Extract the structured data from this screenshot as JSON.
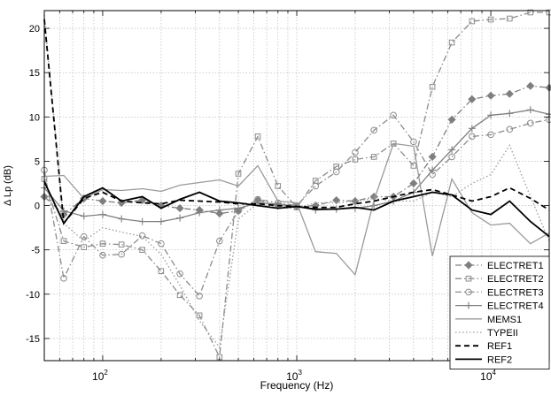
{
  "chart_data": {
    "type": "line",
    "xscale": "log",
    "xlim": [
      50,
      20000
    ],
    "ylim": [
      -17.5,
      22
    ],
    "grid": true,
    "legend_position": "bottom-right",
    "xlabel": "Frequency (Hz)",
    "ylabel": "Δ Lp (dB)",
    "xtick_labels": [
      "10^2",
      "10^3",
      "10^4"
    ],
    "ytick_labels": [
      "-15",
      "-10",
      "-5",
      "0",
      "5",
      "10",
      "15",
      "20"
    ],
    "yticks": [
      -15,
      -10,
      -5,
      0,
      5,
      10,
      15,
      20
    ],
    "series": [
      {
        "name": "ELECTRET1",
        "color": "#7f7f7f",
        "dash": "dashdot",
        "marker": "diamond",
        "points": [
          [
            50,
            1.0
          ],
          [
            63,
            -1.0
          ],
          [
            80,
            0.8
          ],
          [
            100,
            0.5
          ],
          [
            125,
            0.3
          ],
          [
            160,
            0.6
          ],
          [
            200,
            0.0
          ],
          [
            250,
            -0.3
          ],
          [
            315,
            -0.5
          ],
          [
            400,
            -0.9
          ],
          [
            500,
            -0.6
          ],
          [
            630,
            0.6
          ],
          [
            800,
            0.0
          ],
          [
            1000,
            -0.1
          ],
          [
            1250,
            0.0
          ],
          [
            1600,
            0.6
          ],
          [
            2000,
            0.5
          ],
          [
            2500,
            1.0
          ],
          [
            3150,
            1.0
          ],
          [
            4000,
            2.5
          ],
          [
            5000,
            5.5
          ],
          [
            6300,
            9.7
          ],
          [
            8000,
            12.0
          ],
          [
            10000,
            12.4
          ],
          [
            12500,
            12.6
          ],
          [
            16000,
            13.5
          ],
          [
            20000,
            13.3
          ]
        ]
      },
      {
        "name": "ELECTRET2",
        "color": "#8c8c8c",
        "dash": "dashdot",
        "marker": "square",
        "points": [
          [
            50,
            3.0
          ],
          [
            63,
            -4.0
          ],
          [
            80,
            -4.7
          ],
          [
            100,
            -4.3
          ],
          [
            125,
            -4.4
          ],
          [
            160,
            -5.0
          ],
          [
            200,
            -7.4
          ],
          [
            250,
            -10.1
          ],
          [
            315,
            -12.4
          ],
          [
            400,
            -17.1
          ],
          [
            500,
            3.6
          ],
          [
            630,
            7.8
          ],
          [
            800,
            2.2
          ],
          [
            1000,
            -0.2
          ],
          [
            1250,
            2.8
          ],
          [
            1600,
            4.4
          ],
          [
            2000,
            5.2
          ],
          [
            2500,
            5.5
          ],
          [
            3150,
            7.0
          ],
          [
            4000,
            4.5
          ],
          [
            5000,
            13.4
          ],
          [
            6300,
            18.4
          ],
          [
            8000,
            20.8
          ],
          [
            10000,
            21.0
          ],
          [
            12500,
            21.1
          ],
          [
            16000,
            21.8
          ],
          [
            20000,
            21.8
          ]
        ]
      },
      {
        "name": "ELECTRET3",
        "color": "#8c8c8c",
        "dash": "dashdot",
        "marker": "circle",
        "points": [
          [
            50,
            4.0
          ],
          [
            63,
            -8.2
          ],
          [
            80,
            -3.5
          ],
          [
            100,
            -5.6
          ],
          [
            125,
            -5.5
          ],
          [
            160,
            -3.4
          ],
          [
            200,
            -4.3
          ],
          [
            250,
            -7.7
          ],
          [
            315,
            -10.2
          ],
          [
            400,
            -4.0
          ],
          [
            500,
            -0.6
          ],
          [
            630,
            0.7
          ],
          [
            800,
            0.3
          ],
          [
            1000,
            0.0
          ],
          [
            1250,
            2.2
          ],
          [
            1600,
            3.8
          ],
          [
            2000,
            6.0
          ],
          [
            2500,
            8.5
          ],
          [
            3150,
            10.2
          ],
          [
            4000,
            7.2
          ],
          [
            5000,
            3.5
          ],
          [
            6300,
            5.5
          ],
          [
            8000,
            7.8
          ],
          [
            10000,
            8.0
          ],
          [
            12500,
            8.6
          ],
          [
            16000,
            9.3
          ],
          [
            20000,
            9.7
          ]
        ]
      },
      {
        "name": "ELECTRET4",
        "color": "#7f7f7f",
        "dash": "solid",
        "marker": "plus",
        "points": [
          [
            50,
            2.0
          ],
          [
            63,
            -0.6
          ],
          [
            80,
            -1.2
          ],
          [
            100,
            -1.0
          ],
          [
            125,
            -1.5
          ],
          [
            160,
            -1.8
          ],
          [
            200,
            -1.8
          ],
          [
            250,
            -1.4
          ],
          [
            315,
            -0.8
          ],
          [
            400,
            -0.5
          ],
          [
            500,
            -0.3
          ],
          [
            630,
            0.3
          ],
          [
            800,
            0.2
          ],
          [
            1000,
            -0.1
          ],
          [
            1250,
            -0.5
          ],
          [
            1600,
            -0.4
          ],
          [
            2000,
            -0.3
          ],
          [
            2500,
            0.0
          ],
          [
            3150,
            0.5
          ],
          [
            4000,
            1.5
          ],
          [
            5000,
            4.0
          ],
          [
            6300,
            6.3
          ],
          [
            8000,
            8.7
          ],
          [
            10000,
            10.2
          ],
          [
            12500,
            10.4
          ],
          [
            16000,
            10.8
          ],
          [
            20000,
            10.3
          ]
        ]
      },
      {
        "name": "MEMS1",
        "color": "#9a9a9a",
        "dash": "solid",
        "marker": "none",
        "points": [
          [
            50,
            3.3
          ],
          [
            63,
            3.4
          ],
          [
            80,
            0.8
          ],
          [
            100,
            1.8
          ],
          [
            125,
            1.7
          ],
          [
            160,
            1.9
          ],
          [
            200,
            1.6
          ],
          [
            250,
            2.3
          ],
          [
            315,
            2.6
          ],
          [
            400,
            2.9
          ],
          [
            500,
            2.2
          ],
          [
            630,
            4.5
          ],
          [
            800,
            0.5
          ],
          [
            1000,
            0.3
          ],
          [
            1250,
            -5.2
          ],
          [
            1600,
            -5.4
          ],
          [
            2000,
            -7.8
          ],
          [
            2500,
            0.6
          ],
          [
            3150,
            7.0
          ],
          [
            4000,
            6.7
          ],
          [
            5000,
            -5.7
          ],
          [
            6300,
            3.0
          ],
          [
            8000,
            -0.8
          ],
          [
            10000,
            -2.2
          ],
          [
            12500,
            -2.0
          ],
          [
            16000,
            -4.3
          ],
          [
            20000,
            -3.1
          ]
        ]
      },
      {
        "name": "TYPEII",
        "color": "#9a9a9a",
        "dash": "dotted",
        "marker": "none",
        "points": [
          [
            50,
            21.5
          ],
          [
            63,
            -2.0
          ],
          [
            80,
            -4.0
          ],
          [
            100,
            -2.5
          ],
          [
            125,
            -3.0
          ],
          [
            160,
            -3.5
          ],
          [
            200,
            -5.5
          ],
          [
            250,
            -9.0
          ],
          [
            315,
            -13.0
          ],
          [
            400,
            -16.0
          ],
          [
            500,
            -1.5
          ],
          [
            630,
            0.2
          ],
          [
            800,
            -0.2
          ],
          [
            1000,
            -0.3
          ],
          [
            1250,
            0.3
          ],
          [
            1600,
            0.3
          ],
          [
            2000,
            0.5
          ],
          [
            2500,
            0.8
          ],
          [
            3150,
            0.5
          ],
          [
            4000,
            0.5
          ],
          [
            5000,
            1.5
          ],
          [
            6300,
            1.0
          ],
          [
            8000,
            2.5
          ],
          [
            10000,
            3.5
          ],
          [
            12500,
            6.8
          ],
          [
            16000,
            1.0
          ],
          [
            20000,
            -4.0
          ]
        ]
      },
      {
        "name": "REF1",
        "color": "#000000",
        "dash": "dashed",
        "marker": "none",
        "points": [
          [
            50,
            21.0
          ],
          [
            63,
            -2.0
          ],
          [
            80,
            0.8
          ],
          [
            100,
            1.5
          ],
          [
            125,
            0.5
          ],
          [
            160,
            0.3
          ],
          [
            200,
            0.2
          ],
          [
            250,
            0.6
          ],
          [
            315,
            0.5
          ],
          [
            400,
            0.4
          ],
          [
            500,
            0.2
          ],
          [
            630,
            0.2
          ],
          [
            800,
            0.0
          ],
          [
            1000,
            -0.1
          ],
          [
            1250,
            -0.2
          ],
          [
            1600,
            -0.2
          ],
          [
            2000,
            0.2
          ],
          [
            2500,
            0.5
          ],
          [
            3150,
            1.0
          ],
          [
            4000,
            1.5
          ],
          [
            5000,
            1.8
          ],
          [
            6300,
            1.2
          ],
          [
            8000,
            0.5
          ],
          [
            10000,
            1.0
          ],
          [
            12500,
            2.0
          ],
          [
            16000,
            0.8
          ],
          [
            20000,
            -0.5
          ]
        ]
      },
      {
        "name": "REF2",
        "color": "#000000",
        "dash": "solid",
        "marker": "none",
        "points": [
          [
            50,
            2.7
          ],
          [
            63,
            -2.0
          ],
          [
            80,
            1.0
          ],
          [
            100,
            2.0
          ],
          [
            125,
            0.5
          ],
          [
            160,
            1.0
          ],
          [
            200,
            -0.3
          ],
          [
            250,
            0.7
          ],
          [
            315,
            1.5
          ],
          [
            400,
            0.5
          ],
          [
            500,
            0.3
          ],
          [
            630,
            0.0
          ],
          [
            800,
            -0.3
          ],
          [
            1000,
            -0.1
          ],
          [
            1250,
            -0.4
          ],
          [
            1600,
            -0.4
          ],
          [
            2000,
            -0.2
          ],
          [
            2500,
            -0.5
          ],
          [
            3150,
            0.5
          ],
          [
            4000,
            1.0
          ],
          [
            5000,
            1.5
          ],
          [
            6300,
            1.2
          ],
          [
            8000,
            -0.5
          ],
          [
            10000,
            -1.0
          ],
          [
            12500,
            0.5
          ],
          [
            16000,
            -1.8
          ],
          [
            20000,
            -3.5
          ]
        ]
      }
    ]
  }
}
